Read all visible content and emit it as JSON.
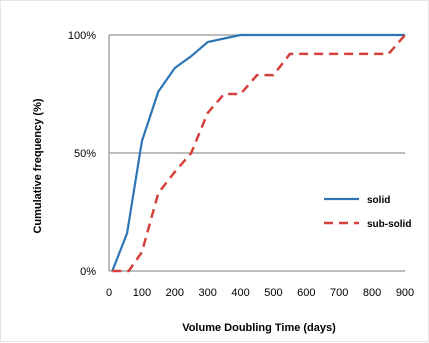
{
  "chart_data": {
    "type": "line",
    "title": "",
    "xlabel": "Volume Doubling Time (days)",
    "ylabel": "Cumulative frequency (%)",
    "xlim": [
      0,
      900
    ],
    "ylim": [
      0,
      100
    ],
    "x_ticks": [
      0,
      100,
      200,
      300,
      400,
      500,
      600,
      700,
      800,
      900
    ],
    "y_ticks": [
      {
        "value": 0,
        "label": "0%"
      },
      {
        "value": 50,
        "label": "50%"
      },
      {
        "value": 100,
        "label": "100%"
      }
    ],
    "grid": "horizontal major lines",
    "legend": "right",
    "series": [
      {
        "name": "solid",
        "style": "solid",
        "color": "#2e75b6",
        "points": [
          [
            10,
            0
          ],
          [
            55,
            16
          ],
          [
            100,
            55
          ],
          [
            150,
            76
          ],
          [
            200,
            86
          ],
          [
            250,
            91
          ],
          [
            300,
            97
          ],
          [
            350,
            98.5
          ],
          [
            400,
            100
          ],
          [
            900,
            100
          ]
        ]
      },
      {
        "name": "sub-solid",
        "style": "dashed",
        "color": "#d5413a",
        "points": [
          [
            10,
            0
          ],
          [
            60,
            0
          ],
          [
            100,
            8
          ],
          [
            150,
            33
          ],
          [
            200,
            42
          ],
          [
            250,
            50
          ],
          [
            300,
            67
          ],
          [
            350,
            75
          ],
          [
            400,
            75
          ],
          [
            450,
            83
          ],
          [
            500,
            83
          ],
          [
            550,
            92
          ],
          [
            600,
            92
          ],
          [
            850,
            92
          ],
          [
            900,
            100
          ]
        ]
      }
    ]
  }
}
